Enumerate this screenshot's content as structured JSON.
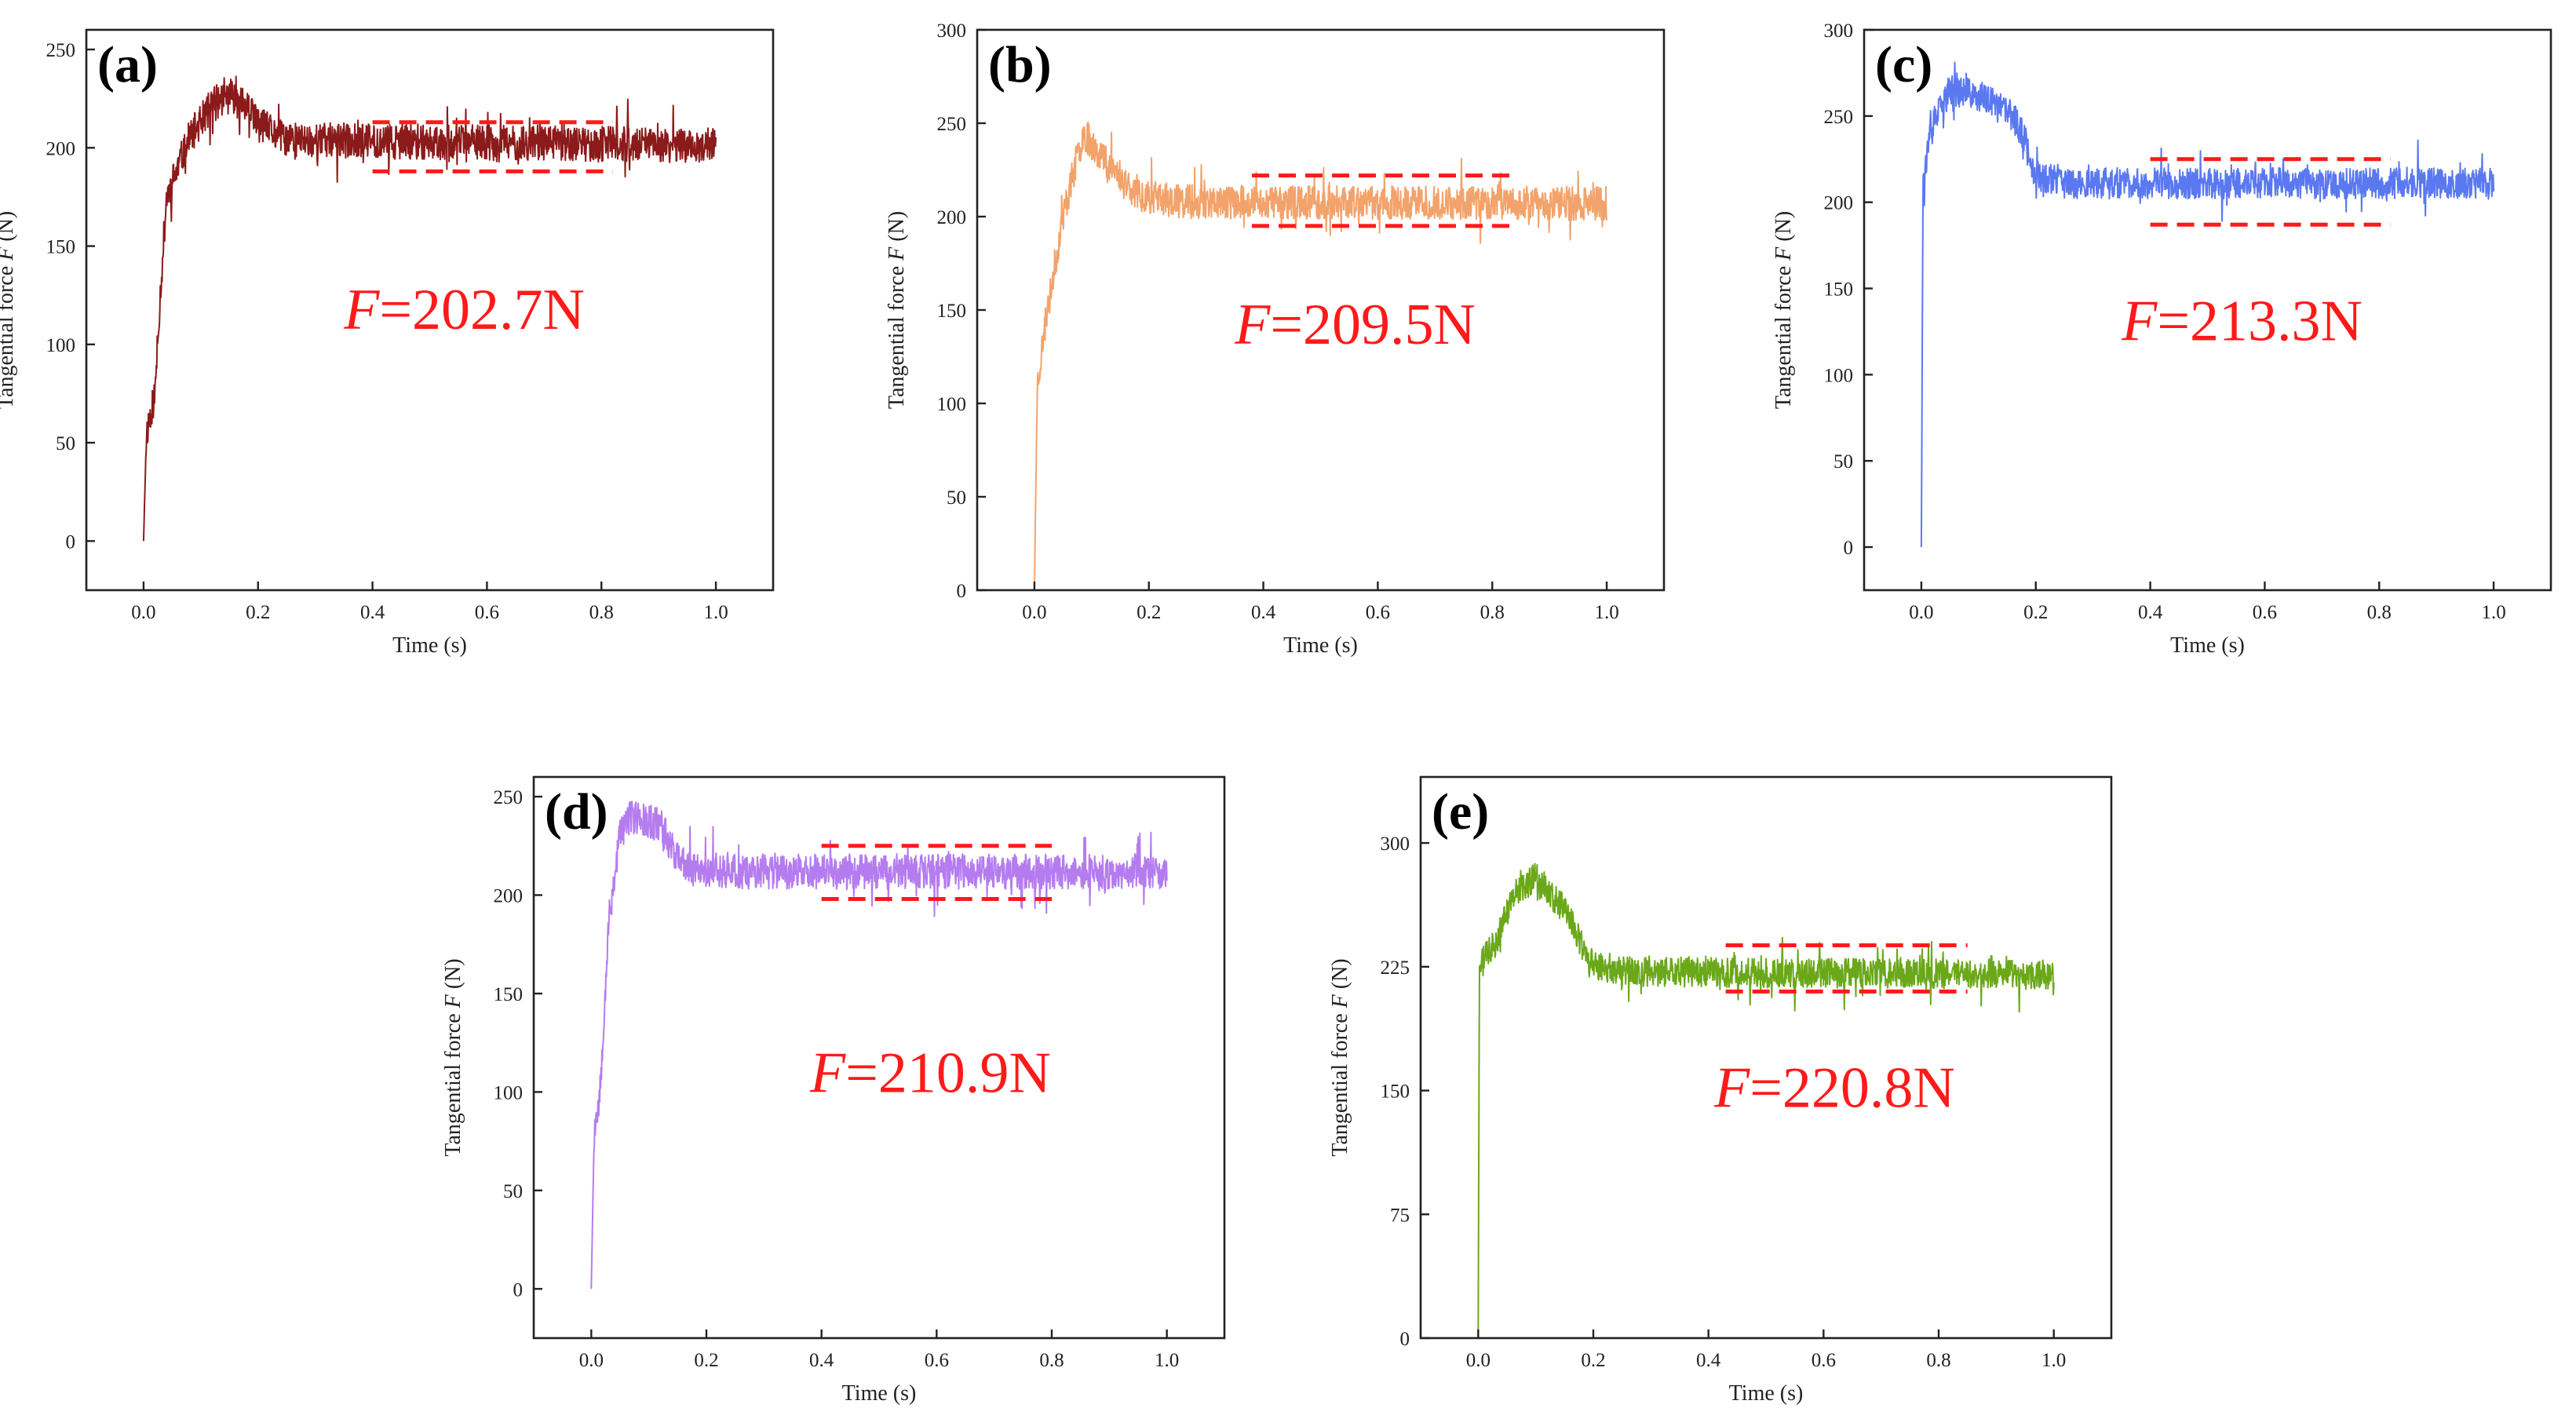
{
  "chart_data": [
    {
      "type": "line",
      "panel": "(a)",
      "color": "#8b1a1a",
      "xlabel": "Time (s)",
      "ylabel": "Tangential force F (N)",
      "ylabel_prefix": "Tangential force ",
      "ylabel_var": "F",
      "ylabel_unit": " (N)",
      "xlim": [
        -0.1,
        1.1
      ],
      "ylim": [
        -25,
        260
      ],
      "xticks": [
        0.0,
        0.2,
        0.4,
        0.6,
        0.8,
        1.0
      ],
      "xtick_labels": [
        "0.0",
        "0.2",
        "0.4",
        "0.6",
        "0.8",
        "1.0"
      ],
      "yticks": [
        0,
        50,
        100,
        150,
        200,
        250
      ],
      "ytick_labels": [
        "0",
        "50",
        "100",
        "150",
        "200",
        "250"
      ],
      "profile": [
        [
          0.0,
          0
        ],
        [
          0.005,
          55
        ],
        [
          0.02,
          75
        ],
        [
          0.028,
          120
        ],
        [
          0.04,
          175
        ],
        [
          0.08,
          205
        ],
        [
          0.12,
          222
        ],
        [
          0.16,
          228
        ],
        [
          0.2,
          212
        ],
        [
          0.25,
          204
        ],
        [
          1.0,
          201
        ]
      ],
      "noise": 9,
      "seed": 11,
      "band": {
        "x_start": 0.4,
        "x_end": 0.82,
        "upper": 213,
        "lower": 188
      },
      "annotation": {
        "var": "F",
        "value": "=202.7N",
        "x": 0.35,
        "y": 108
      }
    },
    {
      "type": "line",
      "panel": "(b)",
      "color": "#f2a36b",
      "xlabel": "Time (s)",
      "ylabel": "Tangential force F (N)",
      "ylabel_prefix": "Tangential force ",
      "ylabel_var": "F",
      "ylabel_unit": " (N)",
      "xlim": [
        -0.1,
        1.1
      ],
      "ylim": [
        0,
        300
      ],
      "xticks": [
        0.0,
        0.2,
        0.4,
        0.6,
        0.8,
        1.0
      ],
      "xtick_labels": [
        "0.0",
        "0.2",
        "0.4",
        "0.6",
        "0.8",
        "1.0"
      ],
      "yticks": [
        0,
        50,
        100,
        150,
        200,
        250,
        300
      ],
      "ytick_labels": [
        "0",
        "50",
        "100",
        "150",
        "200",
        "250",
        "300"
      ],
      "profile": [
        [
          0.0,
          0
        ],
        [
          0.005,
          110
        ],
        [
          0.02,
          145
        ],
        [
          0.05,
          200
        ],
        [
          0.085,
          245
        ],
        [
          0.12,
          232
        ],
        [
          0.18,
          212
        ],
        [
          0.25,
          208
        ],
        [
          1.0,
          207
        ]
      ],
      "noise": 9,
      "seed": 23,
      "band": {
        "x_start": 0.38,
        "x_end": 0.83,
        "upper": 222,
        "lower": 195
      },
      "annotation": {
        "var": "F",
        "value": "=209.5N",
        "x": 0.35,
        "y": 132
      }
    },
    {
      "type": "line",
      "panel": "(c)",
      "color": "#5a78f0",
      "xlabel": "Time (s)",
      "ylabel": "Tangential force F (N)",
      "ylabel_prefix": "Tangential force ",
      "ylabel_var": "F",
      "ylabel_unit": " (N)",
      "xlim": [
        -0.1,
        1.1
      ],
      "ylim": [
        -25,
        300
      ],
      "xticks": [
        0.0,
        0.2,
        0.4,
        0.6,
        0.8,
        1.0
      ],
      "xtick_labels": [
        "0.0",
        "0.2",
        "0.4",
        "0.6",
        "0.8",
        "1.0"
      ],
      "yticks": [
        0,
        50,
        100,
        150,
        200,
        250,
        300
      ],
      "ytick_labels": [
        "0",
        "50",
        "100",
        "150",
        "200",
        "250",
        "300"
      ],
      "profile": [
        [
          0.0,
          0
        ],
        [
          0.003,
          215
        ],
        [
          0.02,
          245
        ],
        [
          0.05,
          265
        ],
        [
          0.1,
          262
        ],
        [
          0.16,
          250
        ],
        [
          0.18,
          238
        ],
        [
          0.2,
          215
        ],
        [
          0.25,
          211
        ],
        [
          1.0,
          211
        ]
      ],
      "noise": 9,
      "seed": 37,
      "band": {
        "x_start": 0.4,
        "x_end": 0.82,
        "upper": 225,
        "lower": 187
      },
      "annotation": {
        "var": "F",
        "value": "=213.3N",
        "x": 0.35,
        "y": 120
      }
    },
    {
      "type": "line",
      "panel": "(d)",
      "color": "#b57cf0",
      "xlabel": "Time (s)",
      "ylabel": "Tangential force F (N)",
      "ylabel_prefix": "Tangential force ",
      "ylabel_var": "F",
      "ylabel_unit": " (N)",
      "xlim": [
        -0.1,
        1.1
      ],
      "ylim": [
        -25,
        260
      ],
      "xticks": [
        0.0,
        0.2,
        0.4,
        0.6,
        0.8,
        1.0
      ],
      "xtick_labels": [
        "0.0",
        "0.2",
        "0.4",
        "0.6",
        "0.8",
        "1.0"
      ],
      "yticks": [
        0,
        50,
        100,
        150,
        200,
        250
      ],
      "ytick_labels": [
        "0",
        "50",
        "100",
        "150",
        "200",
        "250"
      ],
      "profile": [
        [
          0.0,
          0
        ],
        [
          0.005,
          80
        ],
        [
          0.015,
          100
        ],
        [
          0.03,
          185
        ],
        [
          0.05,
          232
        ],
        [
          0.07,
          240
        ],
        [
          0.12,
          236
        ],
        [
          0.16,
          214
        ],
        [
          0.25,
          212
        ],
        [
          1.0,
          212
        ]
      ],
      "noise": 9,
      "seed": 53,
      "band": {
        "x_start": 0.4,
        "x_end": 0.8,
        "upper": 225,
        "lower": 198
      },
      "annotation": {
        "var": "F",
        "value": "=210.9N",
        "x": 0.38,
        "y": 100
      }
    },
    {
      "type": "line",
      "panel": "(e)",
      "color": "#6aa81a",
      "xlabel": "Time (s)",
      "ylabel": "Tangential force F (N)",
      "ylabel_prefix": "Tangential force ",
      "ylabel_var": "F",
      "ylabel_unit": " (N)",
      "xlim": [
        -0.1,
        1.1
      ],
      "ylim": [
        0,
        340
      ],
      "xticks": [
        0.0,
        0.2,
        0.4,
        0.6,
        0.8,
        1.0
      ],
      "xtick_labels": [
        "0.0",
        "0.2",
        "0.4",
        "0.6",
        "0.8",
        "1.0"
      ],
      "yticks": [
        0,
        75,
        150,
        225,
        300
      ],
      "ytick_labels": [
        "0",
        "75",
        "150",
        "225",
        "300"
      ],
      "profile": [
        [
          0.0,
          0
        ],
        [
          0.002,
          225
        ],
        [
          0.03,
          240
        ],
        [
          0.06,
          268
        ],
        [
          0.1,
          280
        ],
        [
          0.16,
          255
        ],
        [
          0.19,
          228
        ],
        [
          0.25,
          222
        ],
        [
          1.0,
          220
        ]
      ],
      "noise": 9,
      "seed": 71,
      "band": {
        "x_start": 0.43,
        "x_end": 0.85,
        "upper": 238,
        "lower": 210
      },
      "annotation": {
        "var": "F",
        "value": "=220.8N",
        "x": 0.41,
        "y": 140
      }
    }
  ]
}
